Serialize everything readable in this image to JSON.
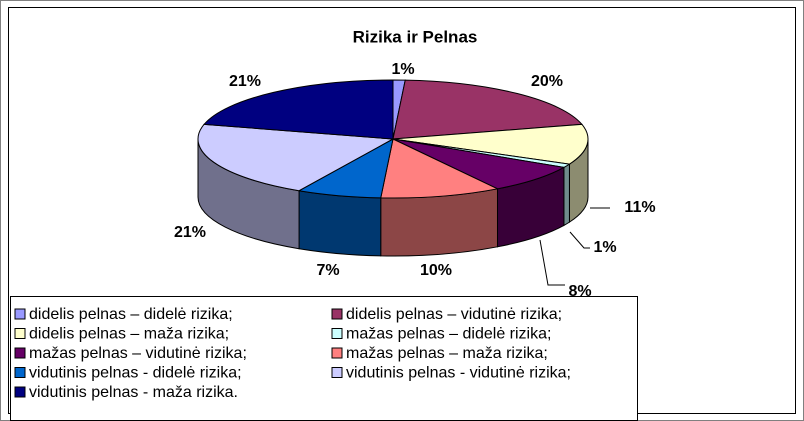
{
  "chart_data": {
    "type": "pie",
    "title": "Rizika ir Pelnas",
    "categories": [
      "didelis pelnas – didelė rizika;",
      "didelis pelnas – vidutinė rizika;",
      "didelis pelnas – maža rizika;",
      "mažas pelnas – didelė rizika;",
      "mažas pelnas – vidutinė rizika;",
      "mažas pelnas – maža rizika;",
      "vidutinis pelnas - didelė rizika;",
      "vidutinis pelnas - vidutinė rizika;",
      "vidutinis pelnas - maža rizika."
    ],
    "values": [
      1,
      20,
      11,
      1,
      8,
      10,
      7,
      21,
      21
    ],
    "value_labels": [
      "1%",
      "20%",
      "11%",
      "1%",
      "8%",
      "10%",
      "7%",
      "21%",
      "21%"
    ],
    "colors": [
      "#9999FF",
      "#993366",
      "#FFFFCC",
      "#CCFFFF",
      "#660066",
      "#FF8080",
      "#0066CC",
      "#CCCCFF",
      "#000080"
    ]
  }
}
